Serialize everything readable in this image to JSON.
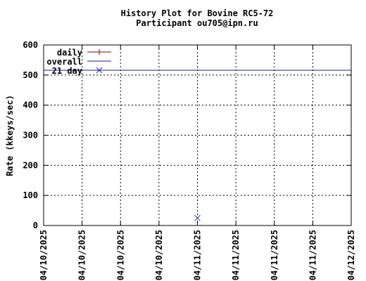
{
  "chart_data": {
    "type": "line",
    "title": "History Plot for Bovine RC5-72",
    "subtitle": "Participant ou705@ipn.ru",
    "xlabel": "",
    "ylabel": "Rate (kkeys/sec)",
    "ylim": [
      0,
      600
    ],
    "yticks": [
      0,
      100,
      200,
      300,
      400,
      500,
      600
    ],
    "xlim": [
      0,
      8
    ],
    "xtick_labels": [
      "04/10/2025",
      "04/10/2025",
      "04/10/2025",
      "04/10/2025",
      "04/11/2025",
      "04/11/2025",
      "04/11/2025",
      "04/11/2025",
      "04/12/2025"
    ],
    "grid": true,
    "legend_position": "top-left",
    "series": [
      {
        "name": "daily",
        "style": "line-points",
        "color": "#8b0000",
        "x": [],
        "y": []
      },
      {
        "name": "overall",
        "style": "line",
        "color": "#1a1aa6",
        "x": [
          0,
          8
        ],
        "y": [
          516,
          516
        ]
      },
      {
        "name": "21 day",
        "style": "points",
        "color": "#2222cc",
        "x": [
          4
        ],
        "y": [
          25
        ]
      }
    ],
    "legend_marker_y": [
      516
    ]
  },
  "colors": {
    "axis": "#000000",
    "grid": "#000000",
    "daily": "#8b0000",
    "overall": "#1a1aa6",
    "twentyone": "#2222cc"
  }
}
